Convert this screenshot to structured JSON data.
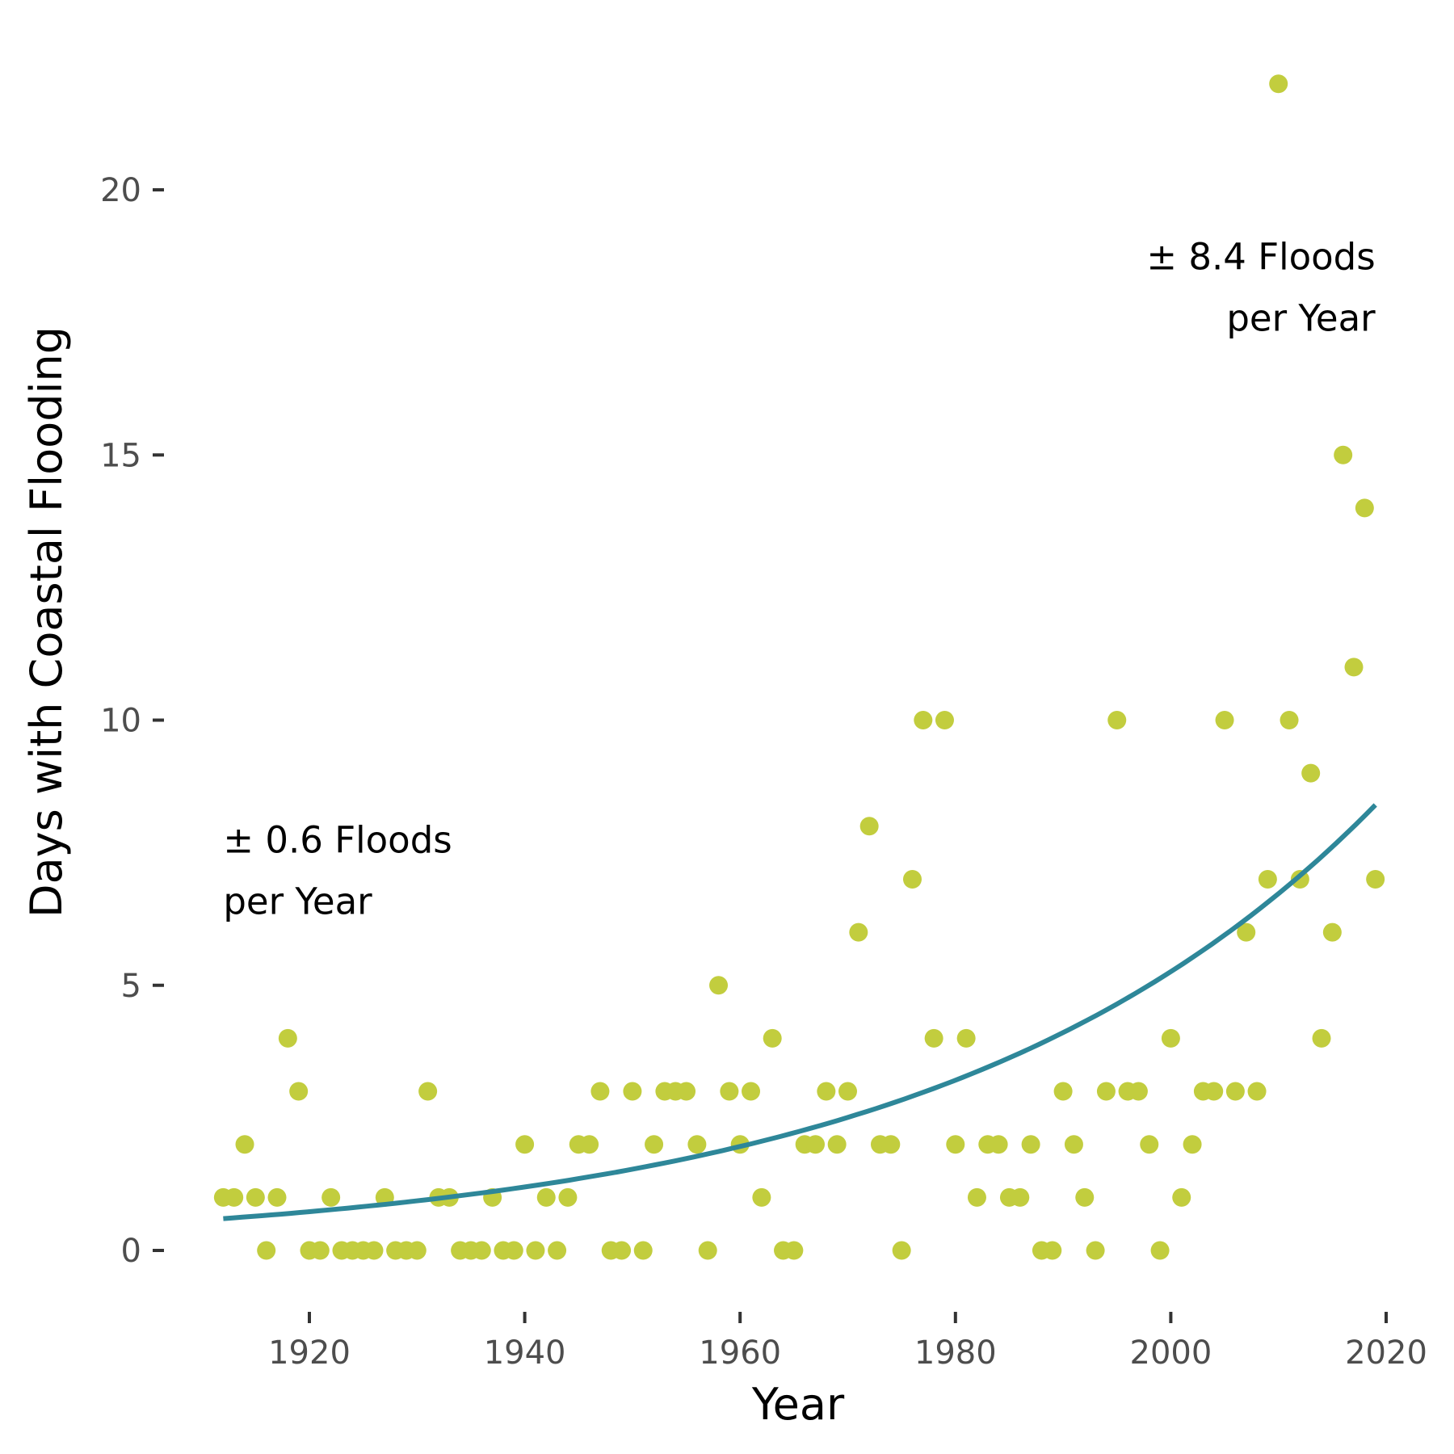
{
  "chart_data": {
    "type": "scatter",
    "title": "",
    "xlabel": "Year",
    "ylabel": "Days with Coastal Flooding",
    "xlim": [
      1910.5,
      2021
    ],
    "ylim": [
      -1,
      22.5
    ],
    "xticks": [
      1920,
      1940,
      1960,
      1980,
      2000,
      2020
    ],
    "yticks": [
      0,
      5,
      10,
      15,
      20
    ],
    "grid": false,
    "legend": "none",
    "colors": {
      "points": "#c2cd3e",
      "trend": "#2e8799",
      "tick_mark": "#333333",
      "tick_label": "#4d4d4d"
    },
    "points": [
      [
        1912,
        1
      ],
      [
        1913,
        1
      ],
      [
        1914,
        2
      ],
      [
        1915,
        1
      ],
      [
        1916,
        0
      ],
      [
        1917,
        1
      ],
      [
        1918,
        4
      ],
      [
        1919,
        3
      ],
      [
        1920,
        0
      ],
      [
        1921,
        0
      ],
      [
        1922,
        1
      ],
      [
        1923,
        0
      ],
      [
        1924,
        0
      ],
      [
        1925,
        0
      ],
      [
        1926,
        0
      ],
      [
        1927,
        1
      ],
      [
        1928,
        0
      ],
      [
        1929,
        0
      ],
      [
        1930,
        0
      ],
      [
        1931,
        3
      ],
      [
        1932,
        1
      ],
      [
        1933,
        1
      ],
      [
        1934,
        0
      ],
      [
        1935,
        0
      ],
      [
        1936,
        0
      ],
      [
        1937,
        1
      ],
      [
        1938,
        0
      ],
      [
        1939,
        0
      ],
      [
        1940,
        2
      ],
      [
        1941,
        0
      ],
      [
        1942,
        1
      ],
      [
        1943,
        0
      ],
      [
        1944,
        1
      ],
      [
        1945,
        2
      ],
      [
        1946,
        2
      ],
      [
        1947,
        3
      ],
      [
        1948,
        0
      ],
      [
        1949,
        0
      ],
      [
        1950,
        3
      ],
      [
        1951,
        0
      ],
      [
        1952,
        2
      ],
      [
        1953,
        3
      ],
      [
        1954,
        3
      ],
      [
        1955,
        3
      ],
      [
        1956,
        2
      ],
      [
        1957,
        0
      ],
      [
        1958,
        5
      ],
      [
        1959,
        3
      ],
      [
        1960,
        2
      ],
      [
        1961,
        3
      ],
      [
        1962,
        1
      ],
      [
        1963,
        4
      ],
      [
        1964,
        0
      ],
      [
        1965,
        0
      ],
      [
        1966,
        2
      ],
      [
        1967,
        2
      ],
      [
        1968,
        3
      ],
      [
        1969,
        2
      ],
      [
        1970,
        3
      ],
      [
        1971,
        6
      ],
      [
        1972,
        8
      ],
      [
        1973,
        2
      ],
      [
        1974,
        2
      ],
      [
        1975,
        0
      ],
      [
        1976,
        7
      ],
      [
        1977,
        10
      ],
      [
        1978,
        4
      ],
      [
        1979,
        10
      ],
      [
        1980,
        2
      ],
      [
        1981,
        4
      ],
      [
        1982,
        1
      ],
      [
        1983,
        2
      ],
      [
        1984,
        2
      ],
      [
        1985,
        1
      ],
      [
        1986,
        1
      ],
      [
        1987,
        2
      ],
      [
        1988,
        0
      ],
      [
        1989,
        0
      ],
      [
        1990,
        3
      ],
      [
        1991,
        2
      ],
      [
        1992,
        1
      ],
      [
        1993,
        0
      ],
      [
        1994,
        3
      ],
      [
        1995,
        10
      ],
      [
        1996,
        3
      ],
      [
        1997,
        3
      ],
      [
        1998,
        2
      ],
      [
        1999,
        0
      ],
      [
        2000,
        4
      ],
      [
        2001,
        1
      ],
      [
        2002,
        2
      ],
      [
        2003,
        3
      ],
      [
        2004,
        3
      ],
      [
        2005,
        10
      ],
      [
        2006,
        3
      ],
      [
        2007,
        6
      ],
      [
        2008,
        3
      ],
      [
        2009,
        7
      ],
      [
        2010,
        22
      ],
      [
        2011,
        10
      ],
      [
        2012,
        7
      ],
      [
        2013,
        9
      ],
      [
        2014,
        4
      ],
      [
        2015,
        6
      ],
      [
        2016,
        15
      ],
      [
        2017,
        11
      ],
      [
        2018,
        14
      ],
      [
        2019,
        7
      ]
    ],
    "trend": {
      "type": "exponential",
      "x_start": 1912,
      "x_end": 2019,
      "y_start": 0.6,
      "y_end": 8.4
    },
    "annotations": [
      {
        "lines": [
          "± 0.6 Floods",
          "per Year"
        ],
        "align": "left",
        "x": 1912,
        "y": 7.5
      },
      {
        "lines": [
          "± 8.4 Floods",
          "per Year"
        ],
        "align": "right",
        "x": 2019,
        "y": 18.5
      }
    ]
  }
}
